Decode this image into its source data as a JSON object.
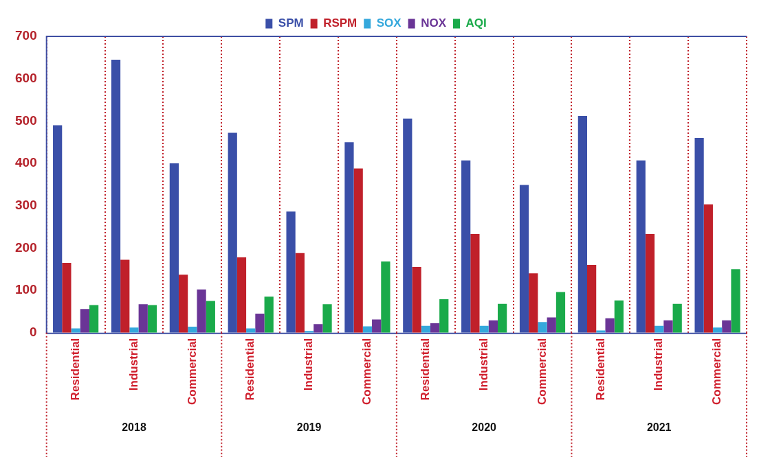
{
  "chart_data": {
    "type": "bar",
    "categories": [
      "Residential",
      "Industrial",
      "Commercial",
      "Residential",
      "Industrial",
      "Commercial",
      "Residential",
      "Industrial",
      "Commercial",
      "Residential",
      "Industrial",
      "Commercial"
    ],
    "series": [
      {
        "name": "SPM",
        "color": "#3a4fa8",
        "values": [
          490,
          645,
          400,
          472,
          286,
          450,
          506,
          407,
          349,
          512,
          407,
          460
        ]
      },
      {
        "name": "RSPM",
        "color": "#c0202a",
        "values": [
          165,
          172,
          137,
          178,
          188,
          388,
          155,
          233,
          140,
          160,
          233,
          303
        ]
      },
      {
        "name": "SOX",
        "color": "#35a8dc",
        "values": [
          10,
          12,
          14,
          10,
          4,
          15,
          16,
          16,
          25,
          5,
          16,
          12
        ]
      },
      {
        "name": "NOX",
        "color": "#6a3596",
        "values": [
          56,
          67,
          102,
          45,
          20,
          31,
          22,
          29,
          36,
          34,
          29,
          29
        ]
      },
      {
        "name": "AQI",
        "color": "#1aaa4a",
        "values": [
          65,
          65,
          75,
          85,
          67,
          168,
          79,
          68,
          96,
          76,
          68,
          150
        ]
      }
    ],
    "annotations": [
      "2018",
      "2019",
      "2020",
      "2021"
    ],
    "ylim": [
      0,
      700
    ],
    "yticks": [
      0,
      100,
      200,
      300,
      400,
      500,
      600,
      700
    ],
    "grid": "x",
    "legend": "top"
  }
}
